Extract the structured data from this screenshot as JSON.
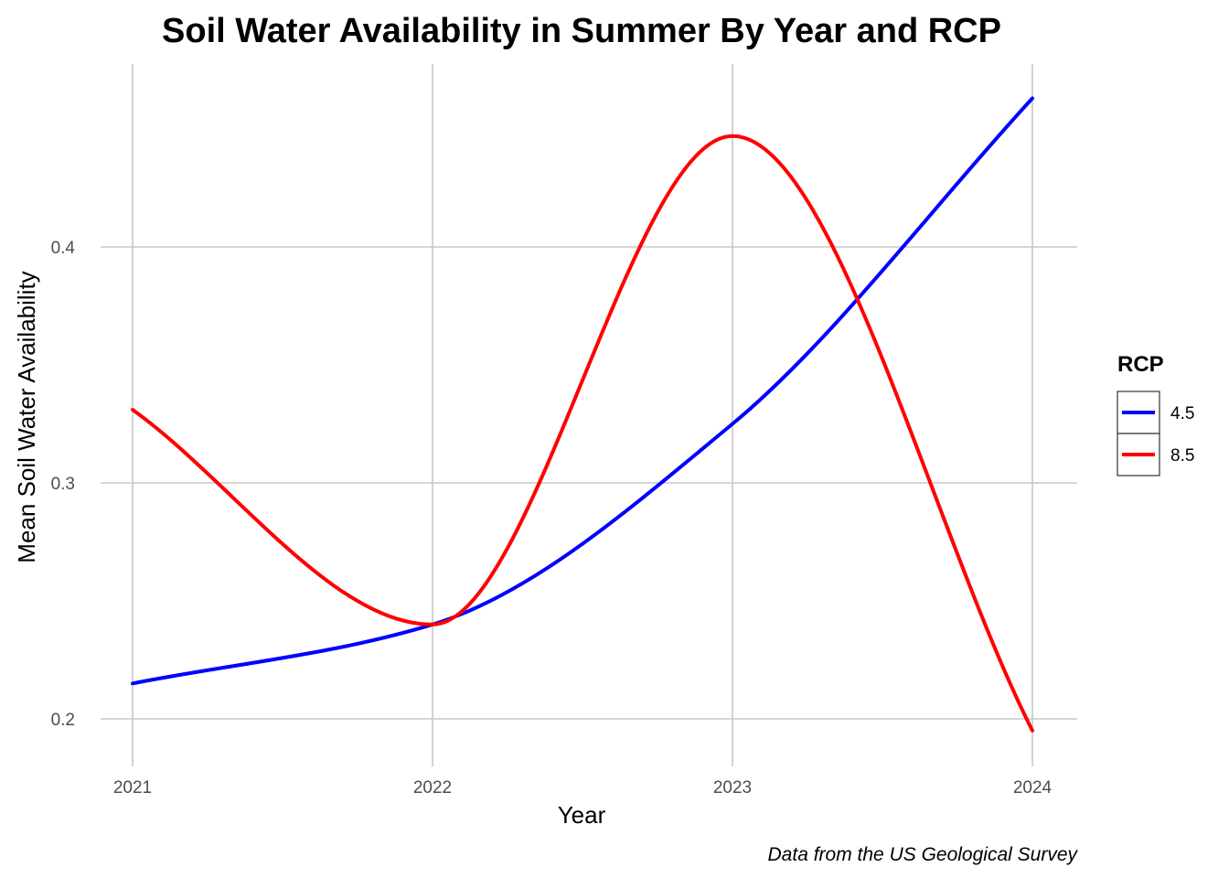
{
  "chart_data": {
    "type": "line",
    "title": "Soil Water Availability in Summer By Year and RCP",
    "xlabel": "Year",
    "ylabel": "Mean Soil Water Availability",
    "caption": "Data from the US Geological Survey",
    "x": [
      2021,
      2022,
      2023,
      2024
    ],
    "x_ticks": [
      "2021",
      "2022",
      "2023",
      "2024"
    ],
    "y_ticks": [
      0.2,
      0.3,
      0.4
    ],
    "y_tick_labels": [
      "0.2",
      "0.3",
      "0.4"
    ],
    "xlim": [
      2021,
      2024
    ],
    "ylim": [
      0.19,
      0.47
    ],
    "grid": true,
    "smooth": true,
    "legend": {
      "title": "RCP",
      "position": "right"
    },
    "series": [
      {
        "name": "4.5",
        "color": "#0000ff",
        "values": [
          0.215,
          0.24,
          0.325,
          0.463
        ]
      },
      {
        "name": "8.5",
        "color": "#ff0000",
        "values": [
          0.331,
          0.24,
          0.447,
          0.195
        ]
      }
    ]
  }
}
